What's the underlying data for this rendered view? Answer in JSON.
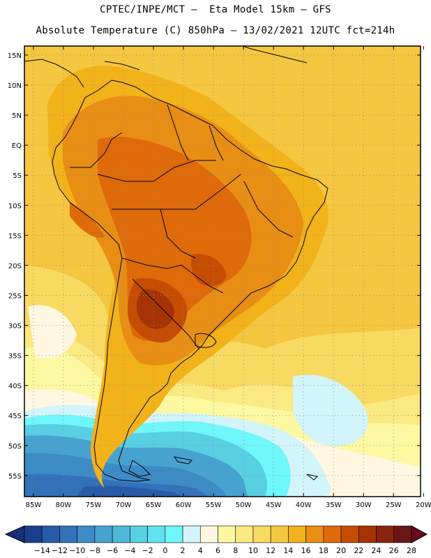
{
  "header": {
    "title_line1": "CPTEC/INPE/MCT –  Eta Model 15km – GFS",
    "title_line2": "Absolute Temperature (C) 850hPa – 13/02/2021 12UTC fct=214h"
  },
  "map": {
    "lat_ticks": [
      "15N",
      "10N",
      "5N",
      "EQ",
      "5S",
      "10S",
      "15S",
      "20S",
      "25S",
      "30S",
      "35S",
      "40S",
      "45S",
      "50S",
      "55S"
    ],
    "lon_ticks": [
      "85W",
      "80W",
      "75W",
      "70W",
      "65W",
      "60W",
      "55W",
      "50W",
      "45W",
      "40W",
      "35W",
      "30W",
      "25W",
      "20W"
    ],
    "lat_range": [
      16.5,
      -58.5
    ],
    "lon_range": [
      -86.5,
      -20.5
    ]
  },
  "colorbar": {
    "labels": [
      "-14",
      "-12",
      "-10",
      "-8",
      "-6",
      "-4",
      "-2",
      "0",
      "2",
      "4",
      "6",
      "8",
      "10",
      "12",
      "14",
      "16",
      "18",
      "20",
      "22",
      "24",
      "26",
      "28"
    ],
    "colors": [
      "#1a3f8a",
      "#275ba8",
      "#3371b9",
      "#3d8bc6",
      "#48a2cf",
      "#4fb7d8",
      "#58cfe3",
      "#62e2ee",
      "#6ff7fb",
      "#d2f4fb",
      "#fff7e2",
      "#fdf8a2",
      "#fbe982",
      "#f8da62",
      "#f5c63f",
      "#f2b21a",
      "#e88e14",
      "#de6a0a",
      "#c54d03",
      "#a63306",
      "#8a2410",
      "#6a1618"
    ],
    "min_arrow_color": "#1a2f7a",
    "max_arrow_color": "#6a0a1c"
  }
}
